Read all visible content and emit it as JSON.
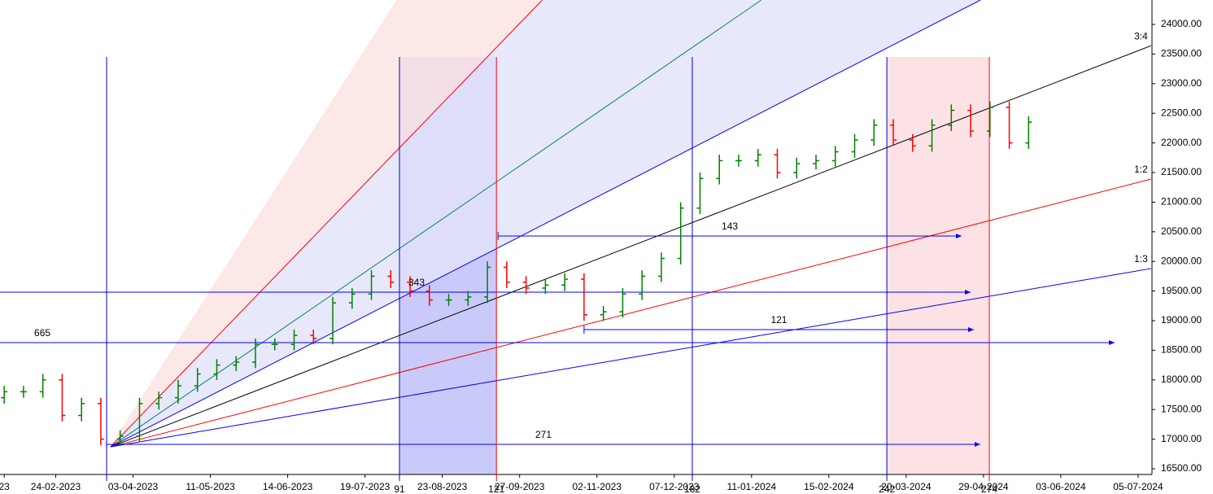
{
  "chart_data": {
    "type": "ohlc",
    "x": [
      0,
      6,
      12,
      18,
      24,
      30,
      36,
      42,
      48,
      54,
      60,
      66,
      72,
      78,
      84,
      90,
      96,
      102,
      108,
      114,
      120,
      126,
      132,
      138,
      144,
      150,
      156,
      162,
      168,
      174,
      180,
      186,
      192,
      198,
      204,
      210,
      216,
      222,
      228,
      234,
      240,
      246,
      252,
      258,
      264,
      270,
      276,
      282,
      288,
      294,
      300,
      306,
      312,
      318
    ],
    "open": [
      17700,
      17800,
      17800,
      18000,
      17400,
      17600,
      17000,
      17050,
      17600,
      17700,
      17900,
      18100,
      18250,
      18300,
      18600,
      18600,
      18750,
      18700,
      19300,
      19450,
      19750,
      19650,
      19500,
      19350,
      19350,
      19400,
      19900,
      19650,
      19550,
      19600,
      19700,
      19100,
      19150,
      19450,
      19750,
      20050,
      20900,
      21400,
      21700,
      21700,
      21800,
      21500,
      21650,
      21700,
      21850,
      22050,
      22300,
      22050,
      21950,
      22300,
      22550,
      22200,
      22600,
      22000
    ],
    "high": [
      17900,
      17900,
      18100,
      18100,
      17700,
      17700,
      17150,
      17700,
      17800,
      18000,
      18200,
      18350,
      18400,
      18700,
      18700,
      18850,
      18850,
      19400,
      19550,
      19850,
      19850,
      19750,
      19600,
      19450,
      19500,
      20000,
      20000,
      19750,
      19700,
      19800,
      19800,
      19250,
      19550,
      19850,
      20150,
      21000,
      21500,
      21800,
      21800,
      21900,
      21900,
      21750,
      21800,
      21950,
      22150,
      22400,
      22400,
      22150,
      22400,
      22650,
      22650,
      22700,
      22700,
      22450
    ],
    "low": [
      17600,
      17700,
      17700,
      17300,
      17300,
      16900,
      16900,
      16950,
      17500,
      17600,
      17800,
      18000,
      18150,
      18200,
      18500,
      18500,
      18600,
      18600,
      19200,
      19350,
      19550,
      19400,
      19250,
      19250,
      19250,
      19300,
      19550,
      19450,
      19450,
      19500,
      19000,
      19000,
      19050,
      19350,
      19650,
      19950,
      20800,
      21300,
      21600,
      21600,
      21400,
      21400,
      21550,
      21600,
      21750,
      21950,
      21950,
      21850,
      21850,
      22200,
      22100,
      22100,
      21900,
      21900
    ],
    "close": [
      17800,
      17800,
      18000,
      17400,
      17600,
      17000,
      17050,
      17600,
      17700,
      17900,
      18100,
      18250,
      18300,
      18600,
      18600,
      18750,
      18700,
      19300,
      19450,
      19750,
      19650,
      19500,
      19350,
      19350,
      19400,
      19900,
      19650,
      19550,
      19600,
      19700,
      19100,
      19150,
      19450,
      19750,
      20050,
      20900,
      21400,
      21700,
      21700,
      21800,
      21500,
      21650,
      21700,
      21850,
      22050,
      22300,
      22050,
      21950,
      22300,
      22550,
      22200,
      22600,
      22000,
      22350
    ],
    "up_color": "#008000",
    "down_color": "#ff0000",
    "xlim": [
      -1.3,
      356.3
    ],
    "ylim": [
      16404,
      24412
    ],
    "xticks": [
      {
        "value": 0,
        "label": "23"
      },
      {
        "value": 16,
        "label": "24-02-2023"
      },
      {
        "value": 40,
        "label": "03-04-2023"
      },
      {
        "value": 64,
        "label": "11-05-2023"
      },
      {
        "value": 88,
        "label": "14-06-2023"
      },
      {
        "value": 112,
        "label": "19-07-2023"
      },
      {
        "value": 136,
        "label": "23-08-2023"
      },
      {
        "value": 160,
        "label": "27-09-2023"
      },
      {
        "value": 184,
        "label": "02-11-2023"
      },
      {
        "value": 208,
        "label": "07-12-2023"
      },
      {
        "value": 232,
        "label": "11-01-2024"
      },
      {
        "value": 256,
        "label": "15-02-2024"
      },
      {
        "value": 280,
        "label": "20-03-2024"
      },
      {
        "value": 304,
        "label": "29-04-2024"
      },
      {
        "value": 328,
        "label": "03-06-2024"
      },
      {
        "value": 352,
        "label": "05-07-2024"
      }
    ],
    "yticks": [
      {
        "value": 16500,
        "label": "16500.00"
      },
      {
        "value": 17000,
        "label": "17000.00"
      },
      {
        "value": 17500,
        "label": "17500.00"
      },
      {
        "value": 18000,
        "label": "18000.00"
      },
      {
        "value": 18500,
        "label": "18500.00"
      },
      {
        "value": 19000,
        "label": "19000.00"
      },
      {
        "value": 19500,
        "label": "19500.00"
      },
      {
        "value": 20000,
        "label": "20000.00"
      },
      {
        "value": 20500,
        "label": "20500.00"
      },
      {
        "value": 21000,
        "label": "21000.00"
      },
      {
        "value": 21500,
        "label": "21500.00"
      },
      {
        "value": 22000,
        "label": "22000.00"
      },
      {
        "value": 22500,
        "label": "22500.00"
      },
      {
        "value": 23000,
        "label": "23000.00"
      },
      {
        "value": 23500,
        "label": "23500.00"
      },
      {
        "value": 24000,
        "label": "24000.00"
      }
    ],
    "fan_origin": [
      33,
      16870
    ],
    "fan": [
      {
        "to": [
          122,
          24410
        ],
        "color": "#fde0e0"
      },
      {
        "to": [
          167,
          24410
        ],
        "color": "#ff0000"
      },
      {
        "to": [
          235,
          24410
        ],
        "color": "#008080"
      },
      {
        "to": [
          303,
          24410
        ],
        "color": "#0000ff"
      },
      {
        "to": [
          356,
          23640
        ],
        "color": "#000000",
        "label": "3:4"
      },
      {
        "to": [
          356,
          21390
        ],
        "color": "#ff0000",
        "label": "1:2"
      },
      {
        "to": [
          356,
          19880
        ],
        "color": "#0000ff",
        "label": "1:3"
      }
    ],
    "fan_fills": [
      {
        "between": [
          0,
          1
        ],
        "color": "#fde2e2"
      },
      {
        "between": [
          1,
          3
        ],
        "color": "#e2e2fa"
      }
    ],
    "bands": [
      {
        "x1": 122.7,
        "x2": 152.8,
        "color": "#b8b8f8"
      },
      {
        "x1": 274,
        "x2": 305.8,
        "color": "#fcd8dc"
      }
    ],
    "cycle_top": 23450,
    "cycles": [
      {
        "x": 31.8,
        "color": "#0000cc"
      },
      {
        "x": 122.7,
        "color": "#0000cc",
        "label": "91"
      },
      {
        "x": 152.8,
        "color": "#ff0000",
        "label": "121"
      },
      {
        "x": 213.6,
        "color": "#0000cc",
        "label": "182"
      },
      {
        "x": 274,
        "color": "#0000cc",
        "label": "242"
      },
      {
        "x": 305.8,
        "color": "#ff0000",
        "label": "274"
      }
    ],
    "arrows": [
      {
        "y": 18629,
        "x1": -321,
        "x2": 344.7,
        "label": 665
      },
      {
        "y": 19481,
        "x1": -44,
        "x2": 300,
        "label": 343
      },
      {
        "y": 16912,
        "x1": 31.8,
        "x2": 303,
        "label": 271
      },
      {
        "y": 20429,
        "x1": 153.3,
        "x2": 297.2,
        "label": 143
      },
      {
        "y": 18849,
        "x1": 180,
        "x2": 301,
        "label": 121
      }
    ]
  }
}
